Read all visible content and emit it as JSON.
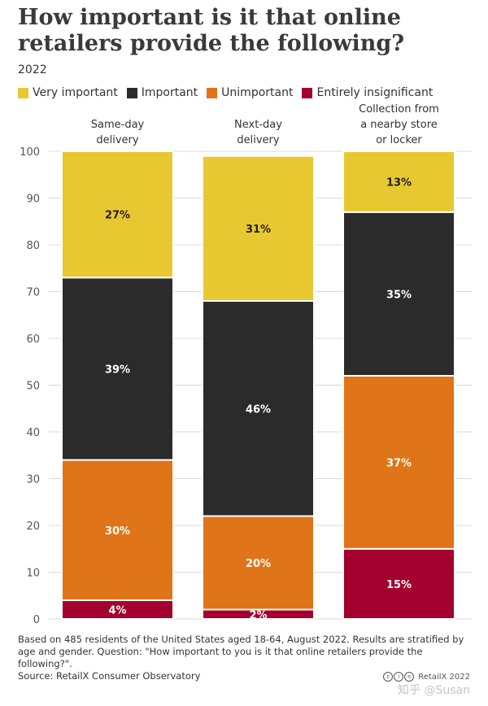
{
  "title": "How important is it that online retailers provide the following?",
  "subtitle": "2022",
  "legend": [
    {
      "label": "Very important",
      "color": "#e8c830"
    },
    {
      "label": "Important",
      "color": "#2b2b2b"
    },
    {
      "label": "Unimportant",
      "color": "#e07418"
    },
    {
      "label": "Entirely insignificant",
      "color": "#a3002f"
    }
  ],
  "chart_data": {
    "type": "bar",
    "stacked": true,
    "orientation": "vertical",
    "categories": [
      [
        "Same-day",
        "delivery"
      ],
      [
        "Next-day",
        "delivery"
      ],
      [
        "Collection from",
        "a nearby store",
        "or locker"
      ]
    ],
    "series": [
      {
        "name": "Entirely insignificant",
        "color": "#a3002f",
        "values": [
          4,
          2,
          15
        ],
        "labels": [
          "4%",
          "2%",
          "15%"
        ]
      },
      {
        "name": "Unimportant",
        "color": "#e07418",
        "values": [
          30,
          20,
          37
        ],
        "labels": [
          "30%",
          "20%",
          "37%"
        ]
      },
      {
        "name": "Important",
        "color": "#2b2b2b",
        "values": [
          39,
          46,
          35
        ],
        "labels": [
          "39%",
          "46%",
          "35%"
        ]
      },
      {
        "name": "Very important",
        "color": "#e8c830",
        "values": [
          27,
          31,
          13
        ],
        "labels": [
          "27%",
          "31%",
          "13%"
        ]
      }
    ],
    "y_ticks": [
      0,
      10,
      20,
      30,
      40,
      50,
      60,
      70,
      80,
      90,
      100
    ],
    "ylim": [
      0,
      100
    ],
    "grid": true
  },
  "note": "Based on 485 residents of the United States aged 18-64, August 2022. Results are stratified by age and gender. Question: \"How important to you is it that online retailers provide the following?\".",
  "source": "Source: RetailX Consumer Observatory",
  "brand": "RetailX 2022",
  "watermark": "知乎 @Susan"
}
